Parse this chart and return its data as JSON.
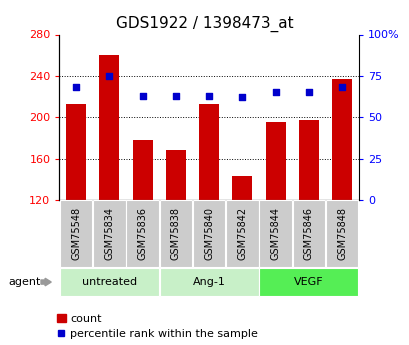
{
  "title": "GDS1922 / 1398473_at",
  "samples": [
    "GSM75548",
    "GSM75834",
    "GSM75836",
    "GSM75838",
    "GSM75840",
    "GSM75842",
    "GSM75844",
    "GSM75846",
    "GSM75848"
  ],
  "counts": [
    213,
    260,
    178,
    168,
    213,
    143,
    195,
    197,
    237
  ],
  "percentiles": [
    68,
    75,
    63,
    63,
    63,
    62,
    65,
    65,
    68
  ],
  "groups": [
    {
      "label": "untreated",
      "start": 0,
      "end": 3,
      "color_light": "#c8f0c8",
      "color_dark": "#c8f0c8"
    },
    {
      "label": "Ang-1",
      "start": 3,
      "end": 6,
      "color_light": "#c8f0c8",
      "color_dark": "#c8f0c8"
    },
    {
      "label": "VEGF",
      "start": 6,
      "end": 9,
      "color_light": "#55dd55",
      "color_dark": "#55dd55"
    }
  ],
  "ylim_left": [
    120,
    280
  ],
  "ylim_right": [
    0,
    100
  ],
  "yticks_left": [
    120,
    160,
    200,
    240,
    280
  ],
  "yticks_right": [
    0,
    25,
    50,
    75,
    100
  ],
  "ytick_labels_right": [
    "0",
    "25",
    "50",
    "75",
    "100%"
  ],
  "bar_color": "#cc0000",
  "dot_color": "#0000cc",
  "sample_bg": "#cccccc",
  "grid_color": "black",
  "title_fontsize": 11,
  "tick_fontsize": 8,
  "label_fontsize": 7,
  "group_fontsize": 8,
  "legend_fontsize": 8,
  "agent_fontsize": 8,
  "grid_lines": [
    160,
    200,
    240
  ],
  "bar_width": 0.6
}
